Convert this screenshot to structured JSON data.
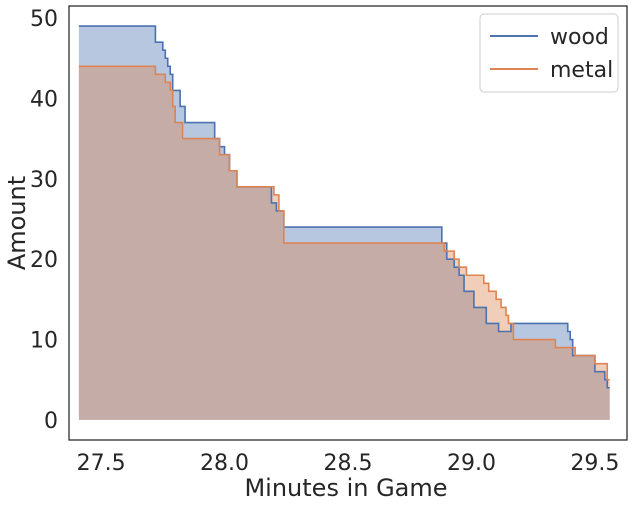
{
  "chart_data": {
    "type": "area",
    "step": "post",
    "xlabel": "Minutes in Game",
    "ylabel": "Amount",
    "xlim": [
      27.37,
      29.63
    ],
    "ylim": [
      -2.5,
      51.5
    ],
    "xticks": [
      27.5,
      28.0,
      28.5,
      29.0,
      29.5
    ],
    "xtick_labels": [
      "27.5",
      "28.0",
      "28.5",
      "29.0",
      "29.5"
    ],
    "yticks": [
      0,
      10,
      20,
      30,
      40,
      50
    ],
    "ytick_labels": [
      "0",
      "10",
      "20",
      "30",
      "40",
      "50"
    ],
    "grid": false,
    "legend": "top-right",
    "series": [
      {
        "name": "wood",
        "color": "#4c72b0",
        "fill": "#b0c0dc",
        "points": [
          [
            27.41,
            49
          ],
          [
            27.72,
            47
          ],
          [
            27.75,
            46
          ],
          [
            27.76,
            45
          ],
          [
            27.77,
            44
          ],
          [
            27.78,
            43
          ],
          [
            27.79,
            41
          ],
          [
            27.82,
            39
          ],
          [
            27.84,
            37
          ],
          [
            27.96,
            35
          ],
          [
            27.98,
            34
          ],
          [
            28.0,
            33
          ],
          [
            28.02,
            31
          ],
          [
            28.05,
            29
          ],
          [
            28.19,
            27
          ],
          [
            28.21,
            26
          ],
          [
            28.24,
            24
          ],
          [
            28.88,
            22
          ],
          [
            28.9,
            20
          ],
          [
            28.93,
            19
          ],
          [
            28.95,
            18
          ],
          [
            28.97,
            16
          ],
          [
            29.01,
            14
          ],
          [
            29.06,
            12
          ],
          [
            29.11,
            11
          ],
          [
            29.16,
            12
          ],
          [
            29.39,
            11
          ],
          [
            29.4,
            10
          ],
          [
            29.41,
            8
          ],
          [
            29.5,
            6
          ],
          [
            29.54,
            5
          ],
          [
            29.55,
            4
          ],
          [
            29.56,
            null
          ]
        ]
      },
      {
        "name": "metal",
        "color": "#dd8452",
        "fill": "#f0c8b0",
        "points": [
          [
            27.41,
            44
          ],
          [
            27.72,
            43
          ],
          [
            27.76,
            42
          ],
          [
            27.78,
            41
          ],
          [
            27.79,
            39
          ],
          [
            27.8,
            37
          ],
          [
            27.83,
            35
          ],
          [
            27.98,
            33
          ],
          [
            28.02,
            31
          ],
          [
            28.05,
            29
          ],
          [
            28.2,
            28
          ],
          [
            28.22,
            26
          ],
          [
            28.24,
            22
          ],
          [
            28.89,
            21
          ],
          [
            28.93,
            20
          ],
          [
            28.95,
            19
          ],
          [
            28.98,
            18
          ],
          [
            29.05,
            17
          ],
          [
            29.07,
            16
          ],
          [
            29.1,
            15
          ],
          [
            29.12,
            14
          ],
          [
            29.14,
            13
          ],
          [
            29.15,
            12
          ],
          [
            29.17,
            10
          ],
          [
            29.34,
            9
          ],
          [
            29.42,
            8
          ],
          [
            29.5,
            7
          ],
          [
            29.55,
            5
          ],
          [
            29.56,
            null
          ]
        ]
      }
    ]
  }
}
